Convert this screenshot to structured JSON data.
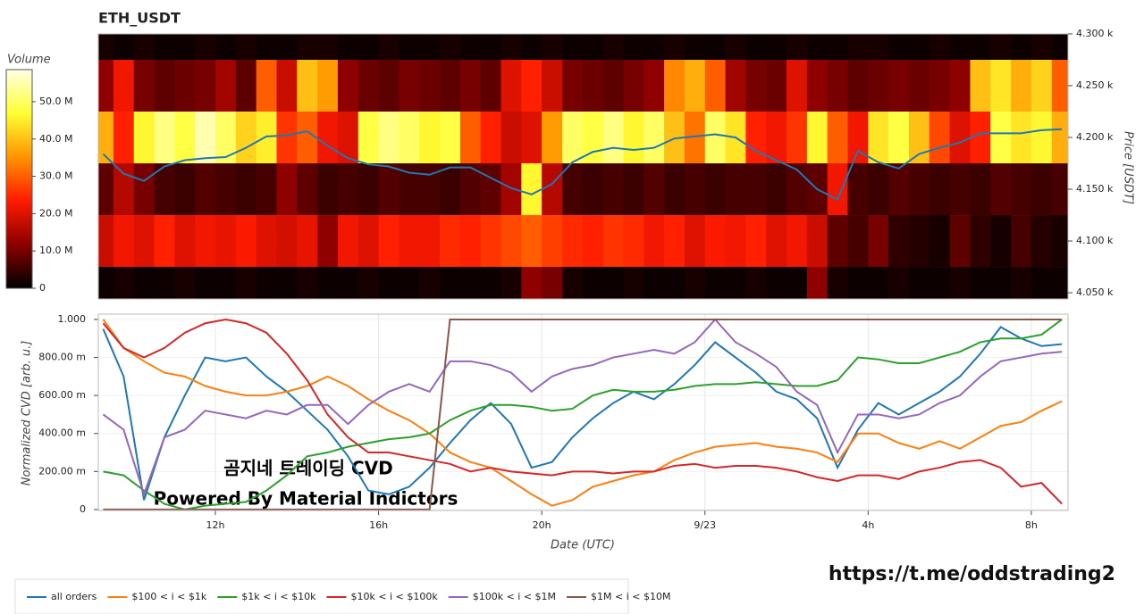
{
  "chart_data": [
    {
      "type": "heatmap",
      "title": "ETH_USDT",
      "colorbar_title": "Volume",
      "y2_label": "Price [USDT]",
      "x": [
        9.25,
        9.75,
        10.25,
        10.75,
        11.25,
        11.75,
        12.25,
        12.75,
        13.25,
        13.75,
        14.25,
        14.75,
        15.25,
        15.75,
        16.25,
        16.75,
        17.25,
        17.75,
        18.25,
        18.75,
        19.25,
        19.75,
        20.25,
        20.75,
        21.25,
        21.75,
        22.25,
        22.75,
        23.25,
        23.75,
        24.25,
        24.75,
        25.25,
        25.75,
        26.25,
        26.75,
        27.25,
        27.75,
        28.25,
        28.75,
        29.25,
        29.75,
        30.25,
        30.75,
        31.25,
        31.75,
        32.25,
        32.75
      ],
      "y": [
        4050,
        4100,
        4150,
        4200,
        4250,
        4300
      ],
      "z": [
        [
          1,
          2,
          1,
          1,
          2,
          1,
          1,
          2,
          1,
          1,
          2,
          1,
          1,
          2,
          1,
          1,
          2,
          1,
          1,
          1,
          2,
          12,
          10,
          2,
          1,
          1,
          2,
          1,
          1,
          2,
          1,
          1,
          2,
          1,
          1,
          12,
          2,
          1,
          1,
          2,
          1,
          1,
          2,
          1,
          1,
          2,
          1,
          1
        ],
        [
          18,
          22,
          20,
          24,
          20,
          22,
          21,
          23,
          20,
          19,
          21,
          12,
          22,
          20,
          24,
          22,
          22,
          25,
          24,
          26,
          28,
          30,
          27,
          25,
          24,
          26,
          25,
          22,
          24,
          20,
          23,
          22,
          24,
          20,
          22,
          18,
          8,
          6,
          10,
          4,
          3,
          2,
          8,
          4,
          2,
          6,
          3,
          2
        ],
        [
          8,
          16,
          10,
          6,
          5,
          7,
          6,
          5,
          6,
          12,
          8,
          5,
          6,
          5,
          7,
          6,
          6,
          5,
          7,
          8,
          14,
          46,
          16,
          6,
          5,
          6,
          5,
          7,
          5,
          6,
          5,
          6,
          6,
          5,
          7,
          8,
          22,
          6,
          5,
          7,
          6,
          5,
          6,
          5,
          7,
          6,
          5,
          6
        ],
        [
          38,
          24,
          46,
          52,
          48,
          55,
          50,
          42,
          45,
          26,
          30,
          22,
          20,
          48,
          52,
          50,
          46,
          48,
          30,
          24,
          18,
          20,
          36,
          50,
          48,
          52,
          46,
          50,
          40,
          32,
          50,
          44,
          24,
          22,
          26,
          46,
          30,
          22,
          44,
          48,
          40,
          28,
          20,
          24,
          48,
          44,
          46,
          38
        ],
        [
          12,
          22,
          10,
          8,
          9,
          10,
          14,
          8,
          30,
          18,
          40,
          36,
          12,
          9,
          8,
          10,
          9,
          8,
          10,
          8,
          20,
          24,
          18,
          10,
          9,
          8,
          10,
          12,
          34,
          38,
          30,
          14,
          10,
          9,
          20,
          12,
          10,
          8,
          9,
          10,
          9,
          10,
          12,
          40,
          44,
          38,
          42,
          30
        ],
        [
          2,
          1,
          2,
          1,
          1,
          2,
          1,
          2,
          1,
          1,
          2,
          2,
          1,
          1,
          2,
          1,
          1,
          2,
          1,
          1,
          2,
          1,
          2,
          1,
          1,
          2,
          1,
          1,
          2,
          1,
          1,
          2,
          1,
          1,
          2,
          1,
          1,
          2,
          2,
          1,
          1,
          2,
          1,
          1,
          2,
          1,
          2,
          1
        ]
      ],
      "colors": [
        "#000000",
        "#8b0000",
        "#ff1a00",
        "#ff9400",
        "#ffff33",
        "#ffffe6"
      ],
      "clim": [
        0,
        58.6
      ],
      "cticks": [
        0,
        {
          "value": 10,
          "label": "10.0 M"
        },
        {
          "value": 20,
          "label": "20.0 M"
        },
        {
          "value": 30,
          "label": "30.0 M"
        },
        {
          "value": 40,
          "label": "40.0 M"
        },
        {
          "value": 50,
          "label": "50.0 M"
        }
      ],
      "xlim": [
        9.13,
        32.9
      ],
      "ylim": [
        4044,
        4300
      ],
      "yticks": [
        {
          "value": 4050,
          "label": "4.050 k"
        },
        {
          "value": 4100,
          "label": "4.100 k"
        },
        {
          "value": 4150,
          "label": "4.150 k"
        },
        {
          "value": 4200,
          "label": "4.200 k"
        },
        {
          "value": 4250,
          "label": "4.250 k"
        },
        {
          "value": 4300,
          "label": "4.300 k"
        }
      ],
      "price": {
        "color": "#1f77b4",
        "values": [
          4184,
          4165,
          4158,
          4172,
          4178,
          4180,
          4181,
          4190,
          4201,
          4202,
          4206,
          4192,
          4180,
          4174,
          4172,
          4166,
          4164,
          4171,
          4171,
          4161,
          4151,
          4145,
          4155,
          4176,
          4186,
          4190,
          4188,
          4190,
          4199,
          4201,
          4203,
          4200,
          4187,
          4178,
          4169,
          4150,
          4140,
          4187,
          4176,
          4170,
          4184,
          4190,
          4195,
          4204,
          4204,
          4204,
          4207,
          4208
        ]
      }
    },
    {
      "type": "line",
      "ylabel": "Normalized CVD [arb. u.]",
      "xlabel": "Date (UTC)",
      "x": [
        9.25,
        9.75,
        10.25,
        10.75,
        11.25,
        11.75,
        12.25,
        12.75,
        13.25,
        13.75,
        14.25,
        14.75,
        15.25,
        15.75,
        16.25,
        16.75,
        17.25,
        17.75,
        18.25,
        18.75,
        19.25,
        19.75,
        20.25,
        20.75,
        21.25,
        21.75,
        22.25,
        22.75,
        23.25,
        23.75,
        24.25,
        24.75,
        25.25,
        25.75,
        26.25,
        26.75,
        27.25,
        27.75,
        28.25,
        28.75,
        29.25,
        29.75,
        30.25,
        30.75,
        31.25,
        31.75,
        32.25,
        32.75
      ],
      "xlim": [
        9.13,
        32.9
      ],
      "xticks": [
        {
          "value": 12,
          "label": "12h"
        },
        {
          "value": 16,
          "label": "16h"
        },
        {
          "value": 20,
          "label": "20h"
        },
        {
          "value": 24,
          "label": "9/23"
        },
        {
          "value": 28,
          "label": "4h"
        },
        {
          "value": 32,
          "label": "8h"
        }
      ],
      "ylim": [
        -0.005,
        1.028
      ],
      "yticks": [
        0,
        {
          "value": 0.2,
          "label": "200.00 m"
        },
        {
          "value": 0.4,
          "label": "400.00 m"
        },
        {
          "value": 0.6,
          "label": "600.00 m"
        },
        {
          "value": 0.8,
          "label": "800.00 m"
        },
        {
          "value": 1,
          "label": "1.000"
        }
      ],
      "grid": true,
      "legend": "bottom-left",
      "series": [
        {
          "name": "all orders",
          "color": "#1f77b4",
          "values": [
            0.95,
            0.7,
            0.05,
            0.38,
            0.6,
            0.8,
            0.78,
            0.8,
            0.7,
            0.62,
            0.52,
            0.42,
            0.28,
            0.1,
            0.08,
            0.12,
            0.22,
            0.35,
            0.47,
            0.56,
            0.45,
            0.22,
            0.25,
            0.38,
            0.48,
            0.56,
            0.62,
            0.58,
            0.66,
            0.76,
            0.88,
            0.8,
            0.72,
            0.62,
            0.58,
            0.48,
            0.22,
            0.42,
            0.56,
            0.5,
            0.56,
            0.62,
            0.7,
            0.82,
            0.96,
            0.9,
            0.86,
            0.87
          ]
        },
        {
          "name": "$100 < i < $1k",
          "color": "#ff7f0e",
          "values": [
            1.0,
            0.85,
            0.78,
            0.72,
            0.7,
            0.65,
            0.62,
            0.6,
            0.6,
            0.62,
            0.65,
            0.7,
            0.65,
            0.58,
            0.52,
            0.47,
            0.4,
            0.3,
            0.25,
            0.22,
            0.15,
            0.08,
            0.02,
            0.05,
            0.12,
            0.15,
            0.18,
            0.2,
            0.26,
            0.3,
            0.33,
            0.34,
            0.35,
            0.33,
            0.32,
            0.3,
            0.25,
            0.4,
            0.4,
            0.35,
            0.32,
            0.36,
            0.32,
            0.38,
            0.44,
            0.46,
            0.52,
            0.57
          ]
        },
        {
          "name": "$1k < i < $10k",
          "color": "#2ca02c",
          "values": [
            0.2,
            0.18,
            0.1,
            0.03,
            0.0,
            0.02,
            0.03,
            0.04,
            0.1,
            0.18,
            0.28,
            0.3,
            0.33,
            0.35,
            0.37,
            0.38,
            0.4,
            0.47,
            0.52,
            0.55,
            0.55,
            0.54,
            0.52,
            0.53,
            0.6,
            0.63,
            0.62,
            0.62,
            0.63,
            0.65,
            0.66,
            0.66,
            0.67,
            0.66,
            0.65,
            0.65,
            0.68,
            0.8,
            0.79,
            0.77,
            0.77,
            0.8,
            0.83,
            0.88,
            0.9,
            0.9,
            0.92,
            1.0
          ]
        },
        {
          "name": "$10k < i < $100k",
          "color": "#d62728",
          "values": [
            0.98,
            0.85,
            0.8,
            0.85,
            0.93,
            0.98,
            1.0,
            0.98,
            0.93,
            0.82,
            0.68,
            0.5,
            0.38,
            0.3,
            0.3,
            0.28,
            0.26,
            0.24,
            0.2,
            0.22,
            0.2,
            0.19,
            0.18,
            0.2,
            0.2,
            0.19,
            0.2,
            0.2,
            0.23,
            0.24,
            0.22,
            0.23,
            0.23,
            0.22,
            0.2,
            0.17,
            0.15,
            0.18,
            0.18,
            0.16,
            0.2,
            0.22,
            0.25,
            0.26,
            0.22,
            0.12,
            0.14,
            0.03
          ]
        },
        {
          "name": "$100k < i < $1M",
          "color": "#9467bd",
          "values": [
            0.5,
            0.42,
            0.08,
            0.38,
            0.42,
            0.52,
            0.5,
            0.48,
            0.52,
            0.5,
            0.55,
            0.55,
            0.45,
            0.55,
            0.62,
            0.66,
            0.62,
            0.78,
            0.78,
            0.76,
            0.72,
            0.62,
            0.7,
            0.74,
            0.76,
            0.8,
            0.82,
            0.84,
            0.82,
            0.88,
            1.0,
            0.88,
            0.82,
            0.75,
            0.62,
            0.55,
            0.3,
            0.5,
            0.5,
            0.48,
            0.5,
            0.56,
            0.6,
            0.7,
            0.78,
            0.8,
            0.82,
            0.83
          ]
        },
        {
          "name": "$1M < i < $10M",
          "color": "#8c564b",
          "values": [
            0,
            0,
            0,
            0,
            0,
            0,
            0,
            0,
            0,
            0,
            0,
            0,
            0,
            0,
            0,
            0,
            0,
            1,
            1,
            1,
            1,
            1,
            1,
            1,
            1,
            1,
            1,
            1,
            1,
            1,
            1,
            1,
            1,
            1,
            1,
            1,
            1,
            1,
            1,
            1,
            1,
            1,
            1,
            1,
            1,
            1,
            1,
            1
          ]
        }
      ]
    }
  ],
  "watermark": [
    "곰지네 트레이딩 CVD",
    "Powered By Material Indictors"
  ],
  "url": "https://t.me/oddstrading2"
}
